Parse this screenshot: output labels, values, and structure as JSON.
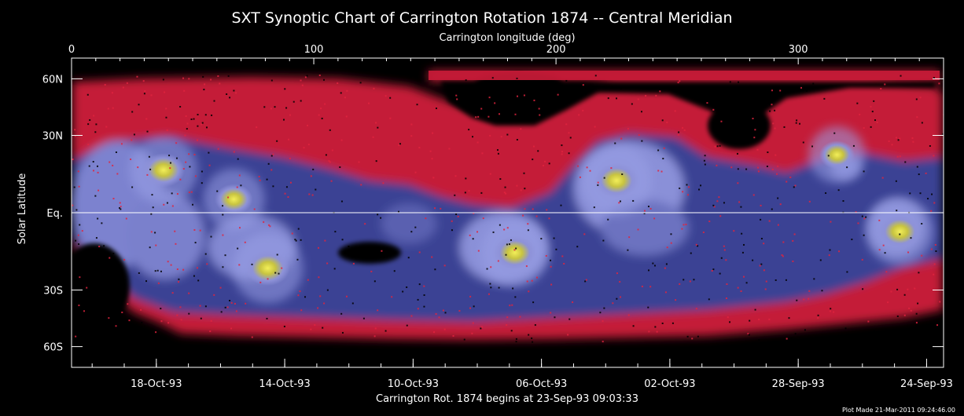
{
  "chart_data": {
    "type": "heatmap",
    "title": "SXT Synoptic Chart of Carrington Rotation 1874 -- Central Meridian",
    "top_axis": {
      "label": "Carrington longitude (deg)",
      "range": [
        0,
        360
      ],
      "ticks": [
        {
          "value": 0,
          "label": "0"
        },
        {
          "value": 100,
          "label": "100"
        },
        {
          "value": 200,
          "label": "200"
        },
        {
          "value": 300,
          "label": "300"
        }
      ]
    },
    "y_axis": {
      "label": "Solar Latitude",
      "scale": "sine-latitude",
      "ticks": [
        {
          "lat": 60,
          "label": "60N"
        },
        {
          "lat": 30,
          "label": "30N"
        },
        {
          "lat": 0,
          "label": "Eq."
        },
        {
          "lat": -30,
          "label": "30S"
        },
        {
          "lat": -60,
          "label": "60S"
        }
      ]
    },
    "bottom_axis": {
      "label": "Carrington Rot. 1874 begins at 23-Sep-93 09:03:33",
      "ticks": [
        {
          "lon": 35,
          "label": "18-Oct-93"
        },
        {
          "lon": 88,
          "label": "14-Oct-93"
        },
        {
          "lon": 141,
          "label": "10-Oct-93"
        },
        {
          "lon": 194,
          "label": "06-Oct-93"
        },
        {
          "lon": 247,
          "label": "02-Oct-93"
        },
        {
          "lon": 300,
          "label": "28-Sep-93"
        },
        {
          "lon": 353,
          "label": "24-Sep-93"
        }
      ]
    },
    "colors": {
      "background": "#000000",
      "diffuse": "#d81e3c",
      "quiet": "#39408f",
      "bright": "#9aa0e6",
      "active_core": "#e6e23a",
      "axes": "#ffffff"
    },
    "active_regions": [
      {
        "lon": 38,
        "lat": 16,
        "intensity": 0.95
      },
      {
        "lon": 67,
        "lat": 5,
        "intensity": 0.8
      },
      {
        "lon": 81,
        "lat": -21,
        "intensity": 1.0
      },
      {
        "lon": 183,
        "lat": -15,
        "intensity": 0.95
      },
      {
        "lon": 225,
        "lat": 12,
        "intensity": 1.0
      },
      {
        "lon": 316,
        "lat": 22,
        "intensity": 0.7
      },
      {
        "lon": 342,
        "lat": -7,
        "intensity": 0.95
      }
    ],
    "grid": false
  },
  "footer": {
    "plot_made": "Plot Made 21-Mar-2011 09:24:46.00"
  }
}
